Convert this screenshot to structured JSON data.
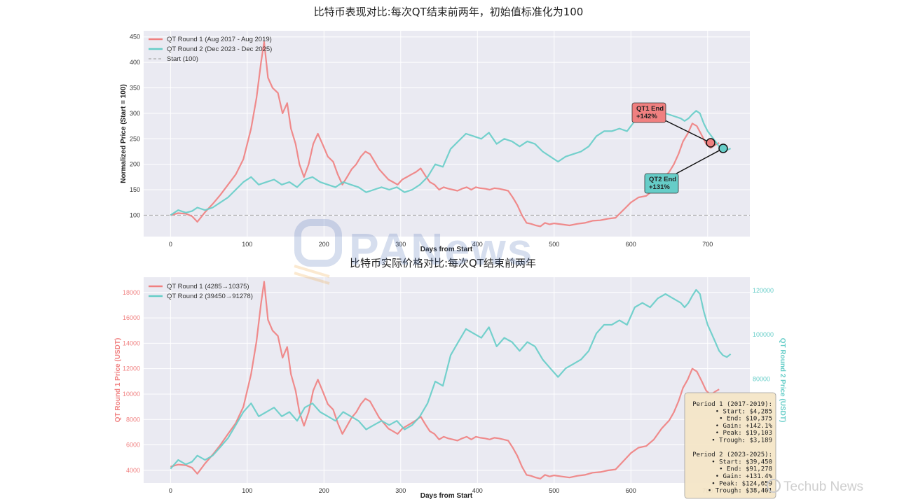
{
  "watermarks": {
    "center": "PANews",
    "corner": "Techub News"
  },
  "colors": {
    "qt1": "#f08080",
    "qt2": "#66cdc8",
    "start": "#aaaaaa",
    "panel_bg": "#eaeaf2",
    "stats_bg": "#f5e6c8"
  },
  "chart_data": [
    {
      "type": "line",
      "title": "比特币表现对比:每次QT结束前两年，初始值标准化为100",
      "xlabel": "Days from Start",
      "ylabel": "Normalized Price (Start = 100)",
      "xlim": [
        -35,
        755
      ],
      "ylim": [
        58,
        462
      ],
      "x_ticks": [
        0,
        100,
        200,
        300,
        400,
        500,
        600,
        700
      ],
      "y_ticks": [
        100,
        150,
        200,
        250,
        300,
        350,
        400,
        450
      ],
      "grid": true,
      "legend_position": "top-left",
      "legend": [
        "QT Round 1 (Aug 2017 - Aug 2019)",
        "QT Round 2 (Dec 2023 - Dec 2025)",
        "Start (100)"
      ],
      "reference_line": {
        "y": 100,
        "label": "Start (100)"
      },
      "series": [
        {
          "name": "QT Round 1 (Aug 2017 - Aug 2019)",
          "x": [
            0,
            10,
            20,
            28,
            35,
            45,
            55,
            65,
            75,
            85,
            95,
            105,
            112,
            118,
            122,
            127,
            133,
            140,
            146,
            152,
            157,
            163,
            168,
            174,
            180,
            186,
            192,
            198,
            205,
            212,
            218,
            224,
            230,
            236,
            242,
            248,
            254,
            260,
            266,
            272,
            278,
            284,
            290,
            296,
            302,
            308,
            314,
            320,
            326,
            332,
            338,
            344,
            350,
            356,
            362,
            368,
            374,
            380,
            386,
            392,
            398,
            404,
            410,
            416,
            422,
            428,
            434,
            440,
            446,
            452,
            458,
            464,
            470,
            476,
            482,
            488,
            494,
            500,
            510,
            520,
            530,
            540,
            550,
            560,
            570,
            580,
            590,
            600,
            610,
            620,
            630,
            640,
            650,
            656,
            662,
            668,
            674,
            680,
            686,
            692,
            698,
            704,
            710,
            715
          ],
          "values": [
            100,
            104,
            103,
            98,
            87,
            106,
            122,
            140,
            160,
            180,
            210,
            270,
            330,
            400,
            440,
            370,
            350,
            340,
            300,
            320,
            270,
            240,
            200,
            175,
            200,
            240,
            260,
            240,
            215,
            205,
            180,
            160,
            175,
            190,
            200,
            215,
            225,
            220,
            205,
            190,
            180,
            170,
            165,
            160,
            170,
            175,
            180,
            185,
            192,
            178,
            165,
            160,
            150,
            155,
            152,
            150,
            148,
            152,
            155,
            150,
            155,
            153,
            152,
            150,
            153,
            152,
            150,
            148,
            135,
            120,
            100,
            85,
            83,
            80,
            78,
            85,
            82,
            84,
            82,
            80,
            83,
            85,
            89,
            90,
            93,
            95,
            110,
            125,
            135,
            138,
            150,
            170,
            185,
            200,
            220,
            245,
            260,
            280,
            275,
            258,
            240,
            232,
            238,
            242
          ],
          "end_label": "QT1 End\n+142%"
        },
        {
          "name": "QT Round 2 (Dec 2023 - Dec 2025)",
          "x": [
            0,
            10,
            20,
            28,
            35,
            45,
            55,
            65,
            75,
            85,
            95,
            105,
            115,
            125,
            135,
            145,
            155,
            165,
            175,
            185,
            195,
            205,
            215,
            225,
            235,
            245,
            255,
            265,
            275,
            285,
            295,
            305,
            315,
            325,
            335,
            345,
            355,
            365,
            375,
            385,
            395,
            405,
            415,
            425,
            435,
            445,
            455,
            465,
            475,
            485,
            495,
            505,
            515,
            525,
            535,
            545,
            555,
            565,
            575,
            585,
            595,
            605,
            615,
            625,
            635,
            645,
            655,
            665,
            670,
            675,
            680,
            685,
            690,
            695,
            700,
            705,
            710,
            715,
            720,
            725,
            730
          ],
          "values": [
            100,
            110,
            105,
            108,
            115,
            110,
            115,
            125,
            135,
            150,
            165,
            175,
            160,
            165,
            170,
            160,
            165,
            155,
            170,
            175,
            165,
            160,
            155,
            165,
            160,
            155,
            145,
            150,
            155,
            150,
            155,
            145,
            150,
            160,
            175,
            200,
            195,
            230,
            245,
            260,
            255,
            250,
            262,
            240,
            250,
            245,
            235,
            245,
            240,
            225,
            215,
            205,
            215,
            220,
            225,
            235,
            255,
            265,
            265,
            270,
            265,
            285,
            290,
            285,
            295,
            300,
            295,
            290,
            285,
            290,
            298,
            305,
            300,
            280,
            265,
            255,
            245,
            235,
            230,
            228,
            231
          ],
          "end_label": "QT2 End\n+131%"
        }
      ]
    },
    {
      "type": "line",
      "title": "比特币实际价格对比:每次QT结束前两年",
      "xlabel": "Days from Start",
      "ylabel": "QT Round 1 Price (USDT)",
      "ylabel_right": "QT Round 2 Price (USDT)",
      "xlim": [
        -35,
        755
      ],
      "ylim": [
        3000,
        19200
      ],
      "ylim_right": [
        33000,
        126000
      ],
      "x_ticks": [
        0,
        100,
        200,
        300,
        400,
        500,
        600,
        700
      ],
      "y_ticks": [
        4000,
        6000,
        8000,
        10000,
        12000,
        14000,
        16000,
        18000
      ],
      "y_ticks_right": [
        80000,
        100000,
        120000
      ],
      "grid": true,
      "legend_position": "top-left",
      "legend": [
        "QT Round 1 (4285→10375)",
        "QT Round 2 (39450→91278)"
      ],
      "series": [
        {
          "name": "QT Round 1 (4285→10375)",
          "axis": "left",
          "x": [
            0,
            10,
            20,
            28,
            35,
            45,
            55,
            65,
            75,
            85,
            95,
            105,
            112,
            118,
            122,
            127,
            133,
            140,
            146,
            152,
            157,
            163,
            168,
            174,
            180,
            186,
            192,
            198,
            205,
            212,
            218,
            224,
            230,
            236,
            242,
            248,
            254,
            260,
            266,
            272,
            278,
            284,
            290,
            296,
            302,
            308,
            314,
            320,
            326,
            332,
            338,
            344,
            350,
            356,
            362,
            368,
            374,
            380,
            386,
            392,
            398,
            404,
            410,
            416,
            422,
            428,
            434,
            440,
            446,
            452,
            458,
            464,
            470,
            476,
            482,
            488,
            494,
            500,
            510,
            520,
            530,
            540,
            550,
            560,
            570,
            580,
            590,
            600,
            610,
            620,
            630,
            640,
            650,
            656,
            662,
            668,
            674,
            680,
            686,
            692,
            698,
            704,
            710,
            715
          ],
          "values": [
            4285,
            4450,
            4400,
            4200,
            3730,
            4540,
            5230,
            6000,
            6860,
            7710,
            9000,
            11570,
            14140,
            17140,
            18850,
            15850,
            15000,
            14570,
            12860,
            13710,
            11570,
            10280,
            8570,
            7500,
            8570,
            10280,
            11140,
            10280,
            9210,
            8780,
            7710,
            6860,
            7500,
            8140,
            8570,
            9210,
            9640,
            9430,
            8780,
            8140,
            7710,
            7280,
            7070,
            6860,
            7280,
            7500,
            7710,
            7930,
            8230,
            7630,
            7070,
            6860,
            6430,
            6640,
            6510,
            6430,
            6340,
            6510,
            6640,
            6430,
            6640,
            6560,
            6510,
            6430,
            6560,
            6510,
            6430,
            6340,
            5780,
            5140,
            4290,
            3640,
            3560,
            3430,
            3340,
            3640,
            3510,
            3600,
            3510,
            3430,
            3560,
            3640,
            3810,
            3860,
            3990,
            4070,
            4710,
            5360,
            5780,
            5910,
            6430,
            7280,
            7930,
            8570,
            9430,
            10500,
            11140,
            12000,
            11780,
            11060,
            10280,
            9940,
            10200,
            10375
          ]
        },
        {
          "name": "QT Round 2 (39450→91278)",
          "axis": "right",
          "x": [
            0,
            10,
            20,
            28,
            35,
            45,
            55,
            65,
            75,
            85,
            95,
            105,
            115,
            125,
            135,
            145,
            155,
            165,
            175,
            185,
            195,
            205,
            215,
            225,
            235,
            245,
            255,
            265,
            275,
            285,
            295,
            305,
            315,
            325,
            335,
            345,
            355,
            365,
            375,
            385,
            395,
            405,
            415,
            425,
            435,
            445,
            455,
            465,
            475,
            485,
            495,
            505,
            515,
            525,
            535,
            545,
            555,
            565,
            575,
            585,
            595,
            605,
            615,
            625,
            635,
            645,
            655,
            665,
            670,
            675,
            680,
            685,
            690,
            695,
            700,
            705,
            710,
            715,
            720,
            725,
            730
          ],
          "values": [
            39450,
            43400,
            41400,
            42600,
            45400,
            43400,
            45400,
            49300,
            53300,
            59200,
            65100,
            69000,
            63100,
            65100,
            67100,
            63100,
            65100,
            61100,
            67100,
            69000,
            65100,
            63100,
            61100,
            65100,
            63100,
            61100,
            57200,
            59200,
            61100,
            59200,
            61100,
            57200,
            59200,
            63100,
            69000,
            78900,
            76900,
            90700,
            96700,
            102600,
            100600,
            98600,
            103400,
            94700,
            98600,
            96700,
            92700,
            96700,
            94700,
            88800,
            84800,
            80900,
            84800,
            86800,
            88800,
            92700,
            100600,
            104500,
            104500,
            106500,
            104500,
            112400,
            114400,
            112400,
            116400,
            118400,
            116400,
            114400,
            112400,
            114400,
            117600,
            120300,
            118400,
            110500,
            104500,
            100600,
            96700,
            92700,
            90700,
            89900,
            91278
          ]
        }
      ],
      "stats_box": [
        "Period 1 (2017-2019):",
        "• Start: $4,285",
        "• End: $10,375",
        "• Gain: +142.1%",
        "• Peak: $19,103",
        "• Trough: $3,189",
        "",
        "Period 2 (2023-2025):",
        "• Start: $39,450",
        "• End: $91,278",
        "• Gain: +131.4%",
        "• Peak: $124,659",
        "• Trough: $38,401"
      ]
    }
  ]
}
